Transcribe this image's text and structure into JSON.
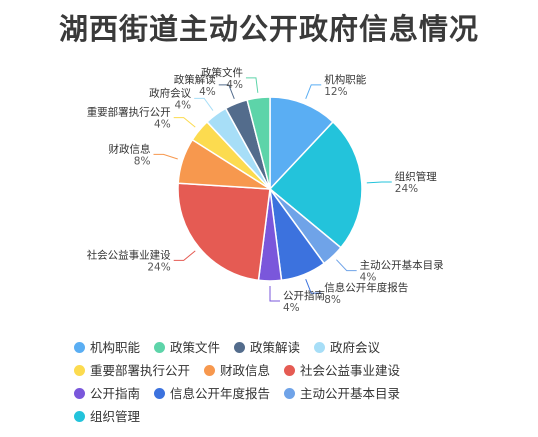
{
  "title": "湖西街道主动公开政府信息情况",
  "chart_data": {
    "type": "pie",
    "title": "湖西街道主动公开政府信息情况",
    "unit": "%",
    "slices": [
      {
        "name": "机构职能",
        "value": 12,
        "label": "12%",
        "color": "#5AAEF3"
      },
      {
        "name": "组织管理",
        "value": 24,
        "label": "24%",
        "color": "#23C3DB"
      },
      {
        "name": "主动公开基本目录",
        "value": 4,
        "label": "4%",
        "color": "#6FA3E8"
      },
      {
        "name": "信息公开年度报告",
        "value": 8,
        "label": "8%",
        "color": "#3C72DE"
      },
      {
        "name": "公开指南",
        "value": 4,
        "label": "4%",
        "color": "#7A57DB"
      },
      {
        "name": "社会公益事业建设",
        "value": 24,
        "label": "24%",
        "color": "#E55B53"
      },
      {
        "name": "财政信息",
        "value": 8,
        "label": "8%",
        "color": "#F7984E"
      },
      {
        "name": "重要部署执行公开",
        "value": 4,
        "label": "4%",
        "color": "#FCDB4F"
      },
      {
        "name": "政府会议",
        "value": 4,
        "label": "4%",
        "color": "#A7DEF7"
      },
      {
        "name": "政策解读",
        "value": 4,
        "label": "4%",
        "color": "#536C8C"
      },
      {
        "name": "政策文件",
        "value": 4,
        "label": "4%",
        "color": "#5DD4A9"
      }
    ],
    "legend": {
      "placement": "bottom",
      "rows": [
        [
          "机构职能",
          "政策文件",
          "政策解读",
          "政府会议"
        ],
        [
          "重要部署执行公开",
          "财政信息",
          "社会公益事业建设"
        ],
        [
          "公开指南",
          "信息公开年度报告",
          "主动公开基本目录"
        ],
        [
          "组织管理"
        ]
      ]
    }
  }
}
